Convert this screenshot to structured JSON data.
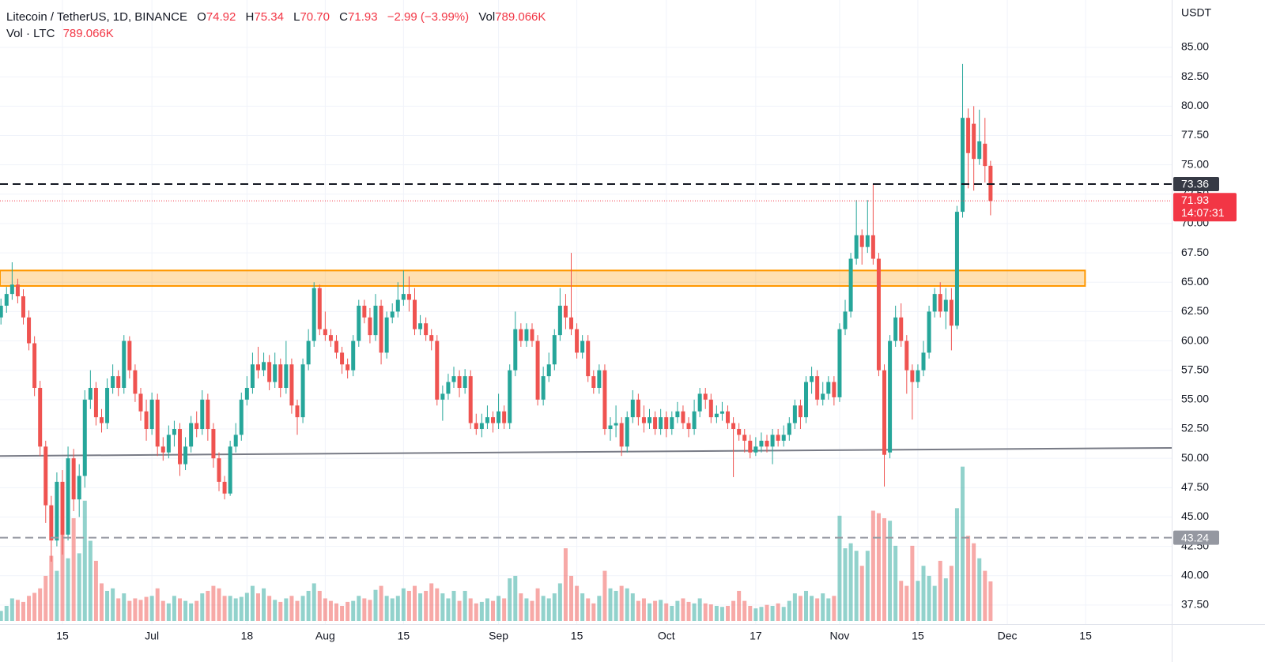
{
  "chart_data": {
    "type": "candlestick",
    "header": {
      "symbol": "Litecoin / TetherUS, 1D, BINANCE",
      "o_label": "O",
      "o": "74.92",
      "h_label": "H",
      "h": "75.34",
      "l_label": "L",
      "l": "70.70",
      "c_label": "C",
      "c": "71.93",
      "change": "−2.99 (−3.99%)",
      "vol_label": "Vol",
      "vol": "789.066K",
      "vol_title": "Vol · LTC",
      "vol_value": "789.066K"
    },
    "y_unit": "USDT",
    "up_color": "#26a69a",
    "down_color": "#ef5350",
    "grid": true,
    "open": [
      62.0,
      63.0,
      64.0,
      64.8,
      63.8,
      62.0,
      59.8,
      56.0,
      51.0,
      46.0,
      43.0,
      48.0,
      43.5,
      50.0,
      46.5,
      48.5,
      55.0,
      56.0,
      53.5,
      53.0,
      56.0,
      57.0,
      56.0,
      60.0,
      57.5,
      55.5,
      54.0,
      52.5,
      55.0,
      51.0,
      50.5,
      52.0,
      52.5,
      49.5,
      51.0,
      53.0,
      52.5,
      55.0,
      52.5,
      50.0,
      48.0,
      47.0,
      51.0,
      52.0,
      55.0,
      56.0,
      58.0,
      57.5,
      58.2,
      56.5,
      58.0,
      56.0,
      58.0,
      54.5,
      53.5,
      58.0,
      60.0,
      64.5,
      61.0,
      60.5,
      60.0,
      59.0,
      58.0,
      57.5,
      60.0,
      63.0,
      62.0,
      60.5,
      63.0,
      59.0,
      62.0,
      62.5,
      63.5,
      64.0,
      63.5,
      61.0,
      61.5,
      60.5,
      60.0,
      55.0,
      55.5,
      56.5,
      57.0,
      56.0,
      57.0,
      53.0,
      52.5,
      53.0,
      53.5,
      53.0,
      54.0,
      53.0,
      57.5,
      61.0,
      60.0,
      61.0,
      60.0,
      55.0,
      57.0,
      58.0,
      60.5,
      63.0,
      62.0,
      61.0,
      59.0,
      60.0,
      57.0,
      56.0,
      57.5,
      52.5,
      52.8,
      53.0,
      51.0,
      53.5,
      55.0,
      53.5,
      53.0,
      53.5,
      52.5,
      53.5,
      52.5,
      53.5,
      54.0,
      53.0,
      52.5,
      54.0,
      55.5,
      55.0,
      53.5,
      53.8,
      54.0,
      53.0,
      52.5,
      52.0,
      51.5,
      50.5,
      51.0,
      51.5,
      51.0,
      52.0,
      51.5,
      52.0,
      53.0,
      54.5,
      53.5,
      56.5,
      57.0,
      55.0,
      55.5,
      56.5,
      55.2,
      61.0,
      62.5,
      67.0,
      69.0,
      68.0,
      69.0,
      67.0,
      57.5,
      50.5,
      60.0,
      62.0,
      60.0,
      57.5,
      56.5,
      57.5,
      59.0,
      62.5,
      64.0,
      62.5,
      63.5,
      61.3,
      71.0,
      79.0,
      78.5,
      75.5,
      76.8,
      74.92
    ],
    "high": [
      63.6,
      64.6,
      66.7,
      65.3,
      64.4,
      62.6,
      60.4,
      56.6,
      51.5,
      46.8,
      48.8,
      49.0,
      51.0,
      50.8,
      49.5,
      55.8,
      57.5,
      56.5,
      54.2,
      56.8,
      58.0,
      57.5,
      60.5,
      60.4,
      58.0,
      56.0,
      55.0,
      55.6,
      55.5,
      51.8,
      52.8,
      53.2,
      53.0,
      51.8,
      53.6,
      54.0,
      55.8,
      55.5,
      53.0,
      50.5,
      48.5,
      51.5,
      53.0,
      55.6,
      57.0,
      59.0,
      59.5,
      59.0,
      58.8,
      59.0,
      58.5,
      60.0,
      58.5,
      55.0,
      58.5,
      61.0,
      65.0,
      64.8,
      62.5,
      61.0,
      60.5,
      59.5,
      58.5,
      60.5,
      63.5,
      63.5,
      62.8,
      64.0,
      63.5,
      62.5,
      63.2,
      65.0,
      66.0,
      65.5,
      64.5,
      62.2,
      62.0,
      61.0,
      60.5,
      56.2,
      57.2,
      57.8,
      57.5,
      57.6,
      57.5,
      53.8,
      53.8,
      54.5,
      54.0,
      55.5,
      54.5,
      58.0,
      62.5,
      61.5,
      61.5,
      61.5,
      60.5,
      57.8,
      59.0,
      61.0,
      64.5,
      64.0,
      67.5,
      61.5,
      60.5,
      60.5,
      57.5,
      58.0,
      58.0,
      53.5,
      54.5,
      53.5,
      54.0,
      55.8,
      55.5,
      54.5,
      54.2,
      54.0,
      54.2,
      54.0,
      54.0,
      54.8,
      54.5,
      53.5,
      55.0,
      56.0,
      56.0,
      55.5,
      54.5,
      54.8,
      54.5,
      53.5,
      53.0,
      52.5,
      52.0,
      51.8,
      52.2,
      52.0,
      52.5,
      52.5,
      52.8,
      53.5,
      55.0,
      55.0,
      57.0,
      57.8,
      57.5,
      56.5,
      57.0,
      57.0,
      61.5,
      63.5,
      67.5,
      72.0,
      69.5,
      72.0,
      73.4,
      67.5,
      58.0,
      60.5,
      63.0,
      63.2,
      60.5,
      58.0,
      58.0,
      60.0,
      63.0,
      64.5,
      65.0,
      64.5,
      64.5,
      71.5,
      83.6,
      79.8,
      80.0,
      79.7,
      79.0,
      75.34
    ],
    "low": [
      61.4,
      62.4,
      63.5,
      63.2,
      61.4,
      59.2,
      55.3,
      50.2,
      44.5,
      41.2,
      42.5,
      41.8,
      43.0,
      45.5,
      45.0,
      47.5,
      54.2,
      52.8,
      52.2,
      52.5,
      55.5,
      55.3,
      55.5,
      56.8,
      54.8,
      53.2,
      51.5,
      52.0,
      50.2,
      49.8,
      50.0,
      51.0,
      48.5,
      49.0,
      50.5,
      51.8,
      52.0,
      51.5,
      49.2,
      47.2,
      46.5,
      46.8,
      50.5,
      51.5,
      54.5,
      55.5,
      56.8,
      57.0,
      55.8,
      56.0,
      55.2,
      55.5,
      53.8,
      52.0,
      53.0,
      57.5,
      59.5,
      60.5,
      60.0,
      59.5,
      58.5,
      57.2,
      56.8,
      57.0,
      59.5,
      61.5,
      59.8,
      60.0,
      58.0,
      58.5,
      61.5,
      62.0,
      63.0,
      62.5,
      60.5,
      60.5,
      60.0,
      59.2,
      54.5,
      53.2,
      55.0,
      56.0,
      55.2,
      55.5,
      52.5,
      52.0,
      51.8,
      52.5,
      52.2,
      52.5,
      52.5,
      52.5,
      57.0,
      59.5,
      59.5,
      59.5,
      54.5,
      54.5,
      56.5,
      57.5,
      60.0,
      61.0,
      60.5,
      58.5,
      58.5,
      56.5,
      55.5,
      55.5,
      52.0,
      51.5,
      51.8,
      50.2,
      50.5,
      53.0,
      52.8,
      52.2,
      52.5,
      52.0,
      52.0,
      51.8,
      52.0,
      53.0,
      52.5,
      51.8,
      52.0,
      53.5,
      54.2,
      53.0,
      53.0,
      53.2,
      52.5,
      48.4,
      51.5,
      50.5,
      50.0,
      50.2,
      50.5,
      50.5,
      49.5,
      51.0,
      51.0,
      51.5,
      52.5,
      52.5,
      53.0,
      55.5,
      54.5,
      54.5,
      55.0,
      54.5,
      54.8,
      60.5,
      62.0,
      66.5,
      66.5,
      67.5,
      66.5,
      57.0,
      47.6,
      50.0,
      59.5,
      59.5,
      55.5,
      53.3,
      56.0,
      57.0,
      58.5,
      62.0,
      62.0,
      61.0,
      59.2,
      61.0,
      70.5,
      73.0,
      72.8,
      75.0,
      73.5,
      70.7
    ],
    "close": [
      63.0,
      64.0,
      64.8,
      63.8,
      62.0,
      59.8,
      56.0,
      51.0,
      46.0,
      43.0,
      48.0,
      43.5,
      50.0,
      46.5,
      48.5,
      55.0,
      56.0,
      53.5,
      53.0,
      56.0,
      57.0,
      56.0,
      60.0,
      57.5,
      55.5,
      54.0,
      52.5,
      55.0,
      51.0,
      50.5,
      52.0,
      52.5,
      49.5,
      51.0,
      53.0,
      52.5,
      55.0,
      52.5,
      50.0,
      48.0,
      47.0,
      51.0,
      52.0,
      55.0,
      56.0,
      58.0,
      57.5,
      58.2,
      56.5,
      58.0,
      56.0,
      58.0,
      54.5,
      53.5,
      58.0,
      60.0,
      64.5,
      61.0,
      60.5,
      60.0,
      59.0,
      58.0,
      57.5,
      60.0,
      63.0,
      62.0,
      60.5,
      63.0,
      59.0,
      62.0,
      62.5,
      63.5,
      64.0,
      63.5,
      61.0,
      61.5,
      60.5,
      60.0,
      55.0,
      55.5,
      56.5,
      57.0,
      56.0,
      57.0,
      53.0,
      52.5,
      53.0,
      53.5,
      53.0,
      54.0,
      53.0,
      57.5,
      61.0,
      60.0,
      61.0,
      60.0,
      55.0,
      57.0,
      58.0,
      60.5,
      63.0,
      62.0,
      61.0,
      59.0,
      60.0,
      57.0,
      56.0,
      57.5,
      52.5,
      52.8,
      53.0,
      51.0,
      53.5,
      55.0,
      53.5,
      53.0,
      53.5,
      52.5,
      53.5,
      52.5,
      53.5,
      54.0,
      53.0,
      52.5,
      54.0,
      55.5,
      55.0,
      53.5,
      53.8,
      54.0,
      53.0,
      52.5,
      52.0,
      51.5,
      50.5,
      51.0,
      51.5,
      51.0,
      52.0,
      51.5,
      52.0,
      53.0,
      54.5,
      53.5,
      56.5,
      57.0,
      55.0,
      55.5,
      56.5,
      55.2,
      61.0,
      62.5,
      67.0,
      69.0,
      68.0,
      69.0,
      67.0,
      57.5,
      50.3,
      60.0,
      62.0,
      60.0,
      57.5,
      56.5,
      57.5,
      59.0,
      62.5,
      64.0,
      62.5,
      63.5,
      61.3,
      71.0,
      79.0,
      76.0,
      75.5,
      77.0,
      74.9,
      71.93
    ],
    "volume": [
      200000,
      300000,
      450000,
      420000,
      380000,
      500000,
      560000,
      650000,
      900000,
      1300000,
      1000000,
      1800000,
      1250000,
      2050000,
      1350000,
      2400000,
      1600000,
      1200000,
      750000,
      600000,
      650000,
      450000,
      550000,
      400000,
      450000,
      420000,
      480000,
      500000,
      650000,
      400000,
      350000,
      500000,
      450000,
      400000,
      350000,
      400000,
      550000,
      600000,
      700000,
      650000,
      500000,
      500000,
      450000,
      480000,
      560000,
      700000,
      550000,
      650000,
      500000,
      420000,
      380000,
      450000,
      500000,
      400000,
      500000,
      600000,
      750000,
      600000,
      450000,
      400000,
      350000,
      300000,
      380000,
      400000,
      500000,
      450000,
      420000,
      620000,
      700000,
      500000,
      450000,
      500000,
      650000,
      600000,
      700000,
      550000,
      600000,
      750000,
      650000,
      550000,
      450000,
      600000,
      400000,
      600000,
      450000,
      350000,
      380000,
      450000,
      400000,
      500000,
      450000,
      850000,
      900000,
      550000,
      450000,
      400000,
      650000,
      500000,
      450000,
      550000,
      750000,
      1450000,
      900000,
      700000,
      550000,
      450000,
      350000,
      500000,
      1000000,
      650000,
      600000,
      700000,
      650000,
      550000,
      400000,
      450000,
      350000,
      400000,
      420000,
      350000,
      300000,
      400000,
      450000,
      380000,
      350000,
      450000,
      350000,
      330000,
      300000,
      280000,
      300000,
      400000,
      600000,
      400000,
      300000,
      250000,
      280000,
      320000,
      300000,
      350000,
      280000,
      400000,
      550000,
      500000,
      600000,
      500000,
      450000,
      550000,
      450000,
      500000,
      2100000,
      1450000,
      1550000,
      1400000,
      1100000,
      1400000,
      2200000,
      2150000,
      2050000,
      2000000,
      1500000,
      800000,
      700000,
      1500000,
      800000,
      1100000,
      900000,
      700000,
      1200000,
      850000,
      1100000,
      2250000,
      3080000,
      1700000,
      1550000,
      1250000,
      1000000,
      789066
    ],
    "volume_lim": [
      0,
      4100000
    ],
    "volume_opacity": 0.5,
    "xlim": [
      -0.17,
      209.4
    ],
    "xticks": [
      {
        "value": 11,
        "label": "15"
      },
      {
        "value": 27,
        "label": "Jul"
      },
      {
        "value": 44,
        "label": "18"
      },
      {
        "value": 58,
        "label": "Aug"
      },
      {
        "value": 72,
        "label": "15"
      },
      {
        "value": 89,
        "label": "Sep"
      },
      {
        "value": 103,
        "label": "15"
      },
      {
        "value": 119,
        "label": "Oct"
      },
      {
        "value": 135,
        "label": "17"
      },
      {
        "value": 150,
        "label": "Nov"
      },
      {
        "value": 164,
        "label": "15"
      },
      {
        "value": 180,
        "label": "Dec"
      },
      {
        "value": 194,
        "label": "15"
      }
    ],
    "ylim": [
      35.88,
      89.04
    ],
    "yticks": [
      {
        "value": 37.5,
        "label": "37.50"
      },
      {
        "value": 40,
        "label": "40.00"
      },
      {
        "value": 42.5,
        "label": "42.50"
      },
      {
        "value": 45,
        "label": "45.00"
      },
      {
        "value": 47.5,
        "label": "47.50"
      },
      {
        "value": 50,
        "label": "50.00"
      },
      {
        "value": 52.5,
        "label": "52.50"
      },
      {
        "value": 55,
        "label": "55.00"
      },
      {
        "value": 57.5,
        "label": "57.50"
      },
      {
        "value": 60,
        "label": "60.00"
      },
      {
        "value": 62.5,
        "label": "62.50"
      },
      {
        "value": 65,
        "label": "65.00"
      },
      {
        "value": 67.5,
        "label": "67.50"
      },
      {
        "value": 70,
        "label": "70.00"
      },
      {
        "value": 72.5,
        "label": "72.50"
      },
      {
        "value": 75,
        "label": "75.00"
      },
      {
        "value": 77.5,
        "label": "77.50"
      },
      {
        "value": 80,
        "label": "80.00"
      },
      {
        "value": 82.5,
        "label": "82.50"
      },
      {
        "value": 85,
        "label": "85.00"
      }
    ],
    "zone": {
      "low": 64.68,
      "high": 66.0,
      "x_end": 193.9,
      "color": "#ff9800"
    },
    "trendline": {
      "x": [
        -0.17,
        209.4
      ],
      "y": [
        50.2,
        50.89
      ],
      "color": "#787b86"
    },
    "hlines": [
      {
        "value": 73.36,
        "color": "#131722",
        "box": "#363a45"
      },
      {
        "value": 43.24,
        "color": "#9598a1",
        "box": "#9598a1"
      }
    ],
    "price_line": {
      "value": 71.93,
      "countdown": "14:07:31",
      "color": "#f23645"
    }
  }
}
